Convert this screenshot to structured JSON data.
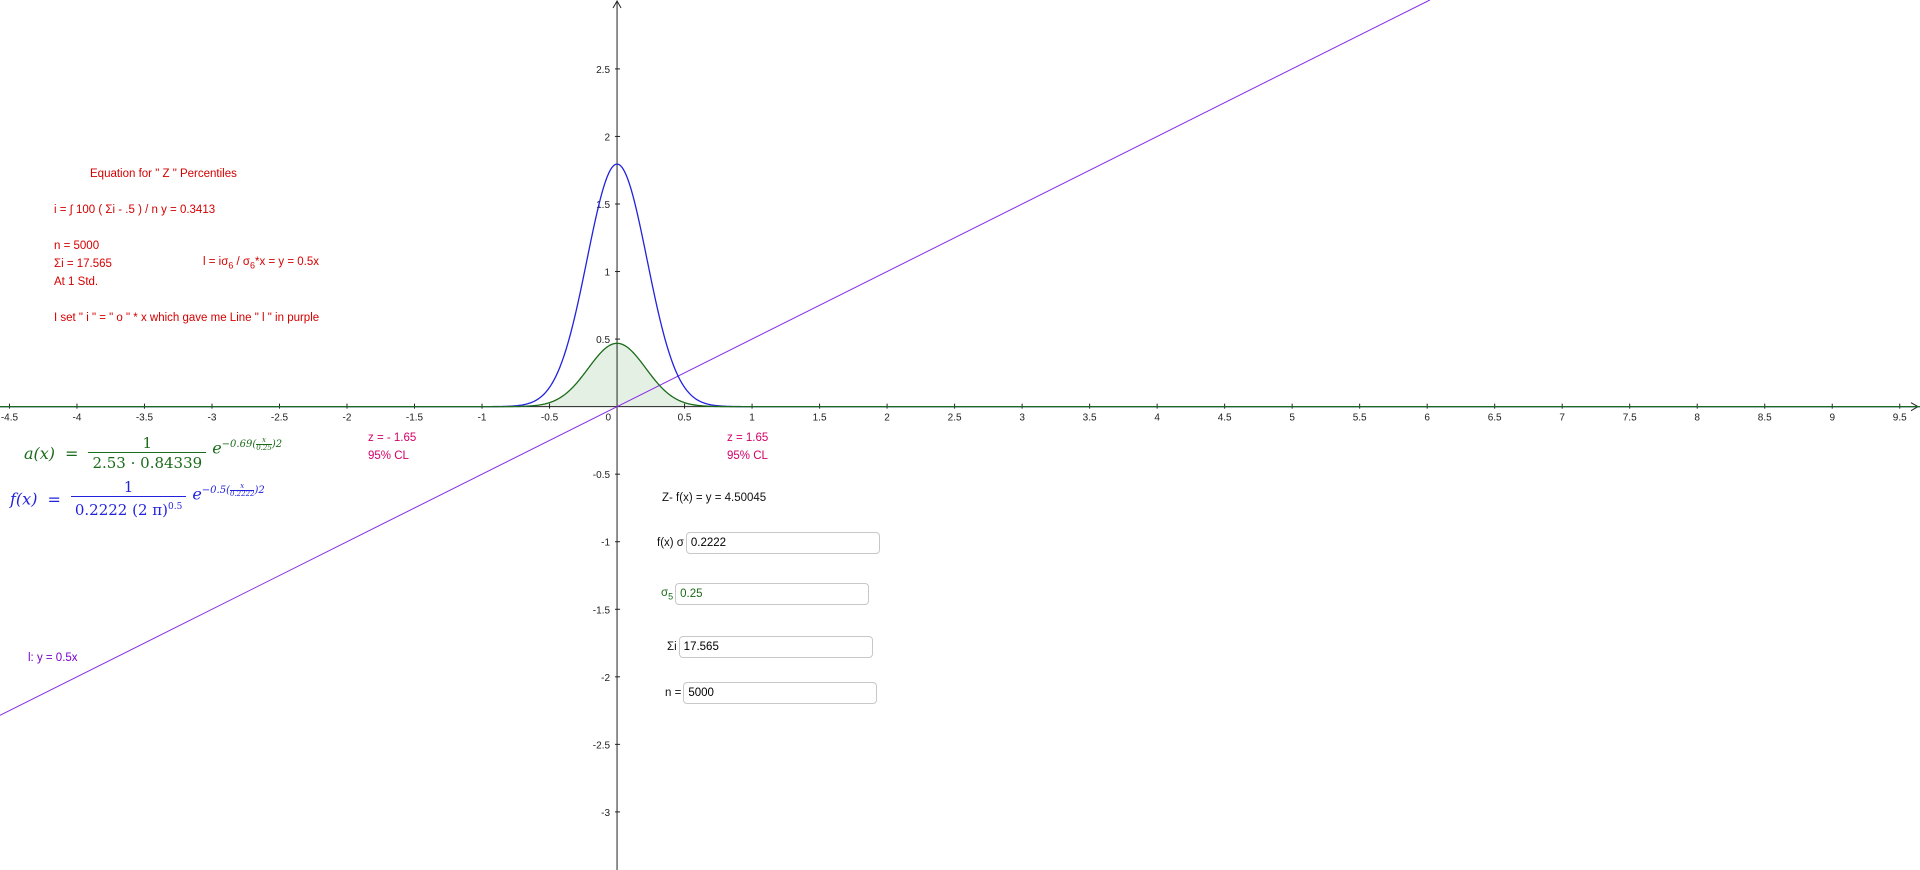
{
  "colors": {
    "text_red": "#d40000",
    "text_pink": "#d4006a",
    "curve_blue": "#2222dd",
    "curve_green": "#1a6b1a",
    "fill_green": "#cfe3cf",
    "line_purple": "#8a2be2",
    "axis": "#222222"
  },
  "axes": {
    "x_ticks": [
      "-4.5",
      "-4",
      "-3.5",
      "-3",
      "-2.5",
      "-2",
      "-1.5",
      "-1",
      "-0.5",
      "0",
      "0.5",
      "1",
      "1.5",
      "2",
      "2.5",
      "3",
      "3.5",
      "4",
      "4.5",
      "5",
      "5.5",
      "6",
      "6.5",
      "7",
      "7.5",
      "8",
      "8.5",
      "9",
      "9.5"
    ],
    "y_ticks": [
      "-3",
      "-2.5",
      "-2",
      "-1.5",
      "-1",
      "-0.5",
      "0.5",
      "1",
      "1.5",
      "2",
      "2.5"
    ]
  },
  "graph": {
    "x_range": [
      -4.57,
      9.65
    ],
    "y_range": [
      -3.43,
      3.01
    ],
    "curve_f": {
      "sigma": 0.2222,
      "color_name": "blue"
    },
    "curve_a": {
      "coef": 0.69,
      "scale": 0.25,
      "norm1": 2.53,
      "norm2": 0.84339,
      "color_name": "green",
      "shaded": true
    },
    "line_l": {
      "slope": 0.5,
      "color_name": "purple"
    }
  },
  "notes": {
    "title": "Equation for \" Z \" Percentiles",
    "integral_line": "i = ∫ 100 ( Σi - .5 ) / n y = 0.3413",
    "n_line": "n = 5000",
    "sum_line": "Σi = 17.565",
    "std_line": "At  1 Std.",
    "line_eq_prefix": "l = iσ",
    "line_eq_sub1": "6",
    "line_eq_mid": " / σ",
    "line_eq_sub2": "6",
    "line_eq_suffix": "*x = y = 0.5x",
    "explain": "I set \" i \" = \" o \" * x which gave me Line  \" l \" in purple"
  },
  "z_labels": {
    "neg_z": "z = - 1.65",
    "neg_cl": "95% CL",
    "pos_z": "z = 1.65",
    "pos_cl": "95% CL"
  },
  "formula_a": {
    "lhs": "a(x)",
    "eq": "=",
    "num": "1",
    "den": "2.53 · 0.84339",
    "base": "e",
    "exp_prefix": "−0.69",
    "exp_top": "x",
    "exp_bottom": "0.25",
    "exp_power": "2"
  },
  "formula_f": {
    "lhs": "f(x)",
    "eq": "=",
    "num": "1",
    "den": "0.2222 (2 π)",
    "den_power": "0.5",
    "base": "e",
    "exp_prefix": "−0.5",
    "exp_top": "x",
    "exp_bottom": "0.2222",
    "exp_power": "2"
  },
  "line_label": "l: y = 0.5x",
  "z_result": "Z- f(x) = y = 4.50045",
  "inputs": {
    "sigma_f": {
      "label": "f(x) σ",
      "value": "0.2222"
    },
    "sigma_5": {
      "label": "σ",
      "label_sub": "5",
      "value": "0.25"
    },
    "sum_i": {
      "label": "Σi",
      "value": "17.565"
    },
    "n": {
      "label": "n =",
      "value": "5000"
    }
  }
}
